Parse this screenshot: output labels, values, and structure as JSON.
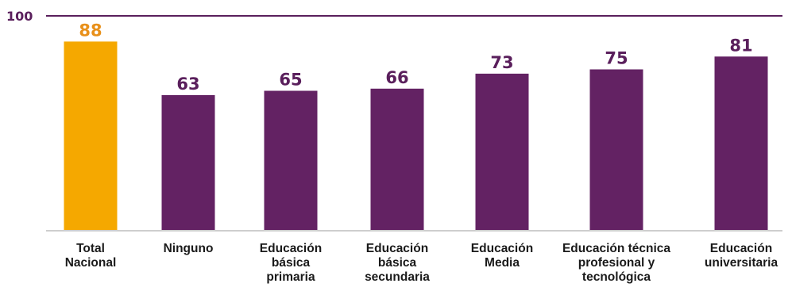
{
  "chart_data": {
    "type": "bar",
    "reference_line": {
      "label": "100",
      "value": 100
    },
    "ylim": [
      0,
      100
    ],
    "grid": false,
    "legend": "none",
    "categories": [
      [
        "Total",
        "Nacional"
      ],
      [
        "Ninguno"
      ],
      [
        "Educación",
        "básica",
        "primaria"
      ],
      [
        "Educación",
        "básica",
        "secundaria"
      ],
      [
        "Educación",
        "Media"
      ],
      [
        "Educación técnica",
        "profesional y",
        "tecnológica"
      ],
      [
        "Educación",
        "universitaria"
      ]
    ],
    "values": [
      88,
      63,
      65,
      66,
      73,
      75,
      81
    ],
    "colors": {
      "highlight": "#F5A800",
      "bar": "#632263",
      "highlight_label": "#E8901A",
      "label": "#5A1F5C",
      "baseline": "#BDBDBD",
      "reference_line": "#5A1F5C"
    },
    "highlight_index": 0
  }
}
